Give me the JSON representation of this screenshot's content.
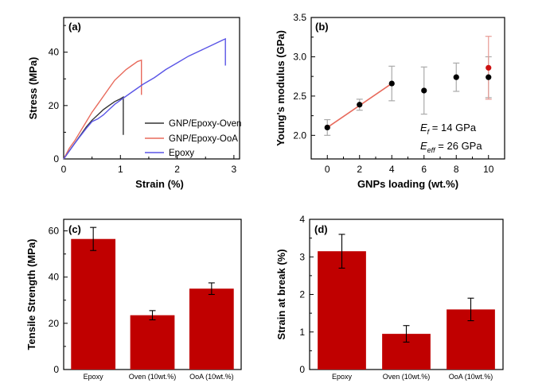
{
  "chart_data": [
    {
      "id": "a",
      "panel_label": "(a)",
      "type": "line",
      "xlabel": "Strain (%)",
      "ylabel": "Stress (MPa)",
      "xlim": [
        0,
        3.1
      ],
      "ylim": [
        0,
        53
      ],
      "xticks": [
        "0",
        "1",
        "2",
        "3"
      ],
      "yticks": [
        "0",
        "20",
        "40"
      ],
      "legend_position": "bottom-right",
      "series": [
        {
          "name": "GNP/Epoxy-Oven",
          "color": "#333333",
          "points": [
            [
              0,
              0
            ],
            [
              0.1,
              3
            ],
            [
              0.2,
              6
            ],
            [
              0.3,
              9
            ],
            [
              0.4,
              12
            ],
            [
              0.5,
              14.5
            ],
            [
              0.6,
              16.5
            ],
            [
              0.7,
              18.5
            ],
            [
              0.8,
              20
            ],
            [
              0.9,
              21.5
            ],
            [
              1.0,
              22.5
            ],
            [
              1.05,
              23.2
            ],
            [
              1.05,
              9
            ]
          ]
        },
        {
          "name": "GNP/Epoxy-OoA",
          "color": "#e86a5c",
          "points": [
            [
              0,
              0
            ],
            [
              0.1,
              4
            ],
            [
              0.2,
              7
            ],
            [
              0.3,
              10.5
            ],
            [
              0.4,
              14
            ],
            [
              0.5,
              17.5
            ],
            [
              0.6,
              20.5
            ],
            [
              0.7,
              23.5
            ],
            [
              0.8,
              26.5
            ],
            [
              0.9,
              29.5
            ],
            [
              1.0,
              31.5
            ],
            [
              1.1,
              33.5
            ],
            [
              1.2,
              35
            ],
            [
              1.3,
              36.5
            ],
            [
              1.37,
              37
            ],
            [
              1.37,
              24
            ]
          ]
        },
        {
          "name": "Epoxy",
          "color": "#5a55e6",
          "points": [
            [
              0,
              0
            ],
            [
              0.2,
              6
            ],
            [
              0.4,
              11.5
            ],
            [
              0.5,
              14
            ],
            [
              0.6,
              15
            ],
            [
              0.7,
              16.5
            ],
            [
              0.8,
              18.5
            ],
            [
              0.9,
              20.5
            ],
            [
              1.0,
              22
            ],
            [
              1.2,
              25
            ],
            [
              1.4,
              28
            ],
            [
              1.6,
              30.5
            ],
            [
              1.8,
              33.5
            ],
            [
              2.0,
              36
            ],
            [
              2.2,
              38.5
            ],
            [
              2.4,
              40.5
            ],
            [
              2.6,
              42.5
            ],
            [
              2.8,
              44.5
            ],
            [
              2.85,
              45
            ],
            [
              2.85,
              35
            ]
          ]
        }
      ]
    },
    {
      "id": "b",
      "panel_label": "(b)",
      "type": "scatter",
      "xlabel": "GNPs loading (wt.%)",
      "ylabel": "Young's modulus (GPa)",
      "xlim": [
        -1,
        11
      ],
      "ylim": [
        1.7,
        3.5
      ],
      "xticks": [
        "0",
        "2",
        "4",
        "6",
        "8",
        "10"
      ],
      "yticks": [
        "2.0",
        "2.5",
        "3.0",
        "3.5"
      ],
      "fit_line": {
        "color": "#e86a5c",
        "x": [
          0,
          4
        ],
        "y": [
          2.1,
          2.66
        ]
      },
      "annotations": [
        {
          "main": "E",
          "sub": "f",
          "rest": " = 14 GPa"
        },
        {
          "main": "E",
          "sub": "eff",
          "rest": " = 26 GPa"
        }
      ],
      "series": [
        {
          "name": "",
          "color": "#000000",
          "x": [
            0,
            2,
            4,
            6,
            8,
            10
          ],
          "y": [
            2.1,
            2.39,
            2.66,
            2.57,
            2.74,
            2.74
          ],
          "err": [
            0.1,
            0.07,
            0.22,
            0.3,
            0.18,
            0.26
          ]
        },
        {
          "name": "",
          "color": "#cc1111",
          "x": [
            10
          ],
          "y": [
            2.86
          ],
          "err": [
            0.4
          ]
        }
      ]
    },
    {
      "id": "c",
      "panel_label": "(c)",
      "type": "bar",
      "xlabel": "",
      "ylabel": "Tensile Strength (MPa)",
      "ylim": [
        0,
        65
      ],
      "yticks": [
        "0",
        "20",
        "40",
        "60"
      ],
      "bar_color": "#c00000",
      "categories": [
        "Epoxy",
        "Oven (10wt.%)",
        "OoA (10wt.%)"
      ],
      "values": [
        56.5,
        23.5,
        35
      ],
      "errors": [
        5,
        2,
        2.5
      ]
    },
    {
      "id": "d",
      "panel_label": "(d)",
      "type": "bar",
      "xlabel": "",
      "ylabel": "Strain at break (%)",
      "ylim": [
        0,
        4
      ],
      "yticks": [
        "0",
        "1",
        "2",
        "3",
        "4"
      ],
      "bar_color": "#c00000",
      "categories": [
        "Epoxy",
        "Oven (10wt.%)",
        "OoA (10wt.%)"
      ],
      "values": [
        3.15,
        0.95,
        1.6
      ],
      "errors": [
        0.45,
        0.22,
        0.3
      ]
    }
  ]
}
